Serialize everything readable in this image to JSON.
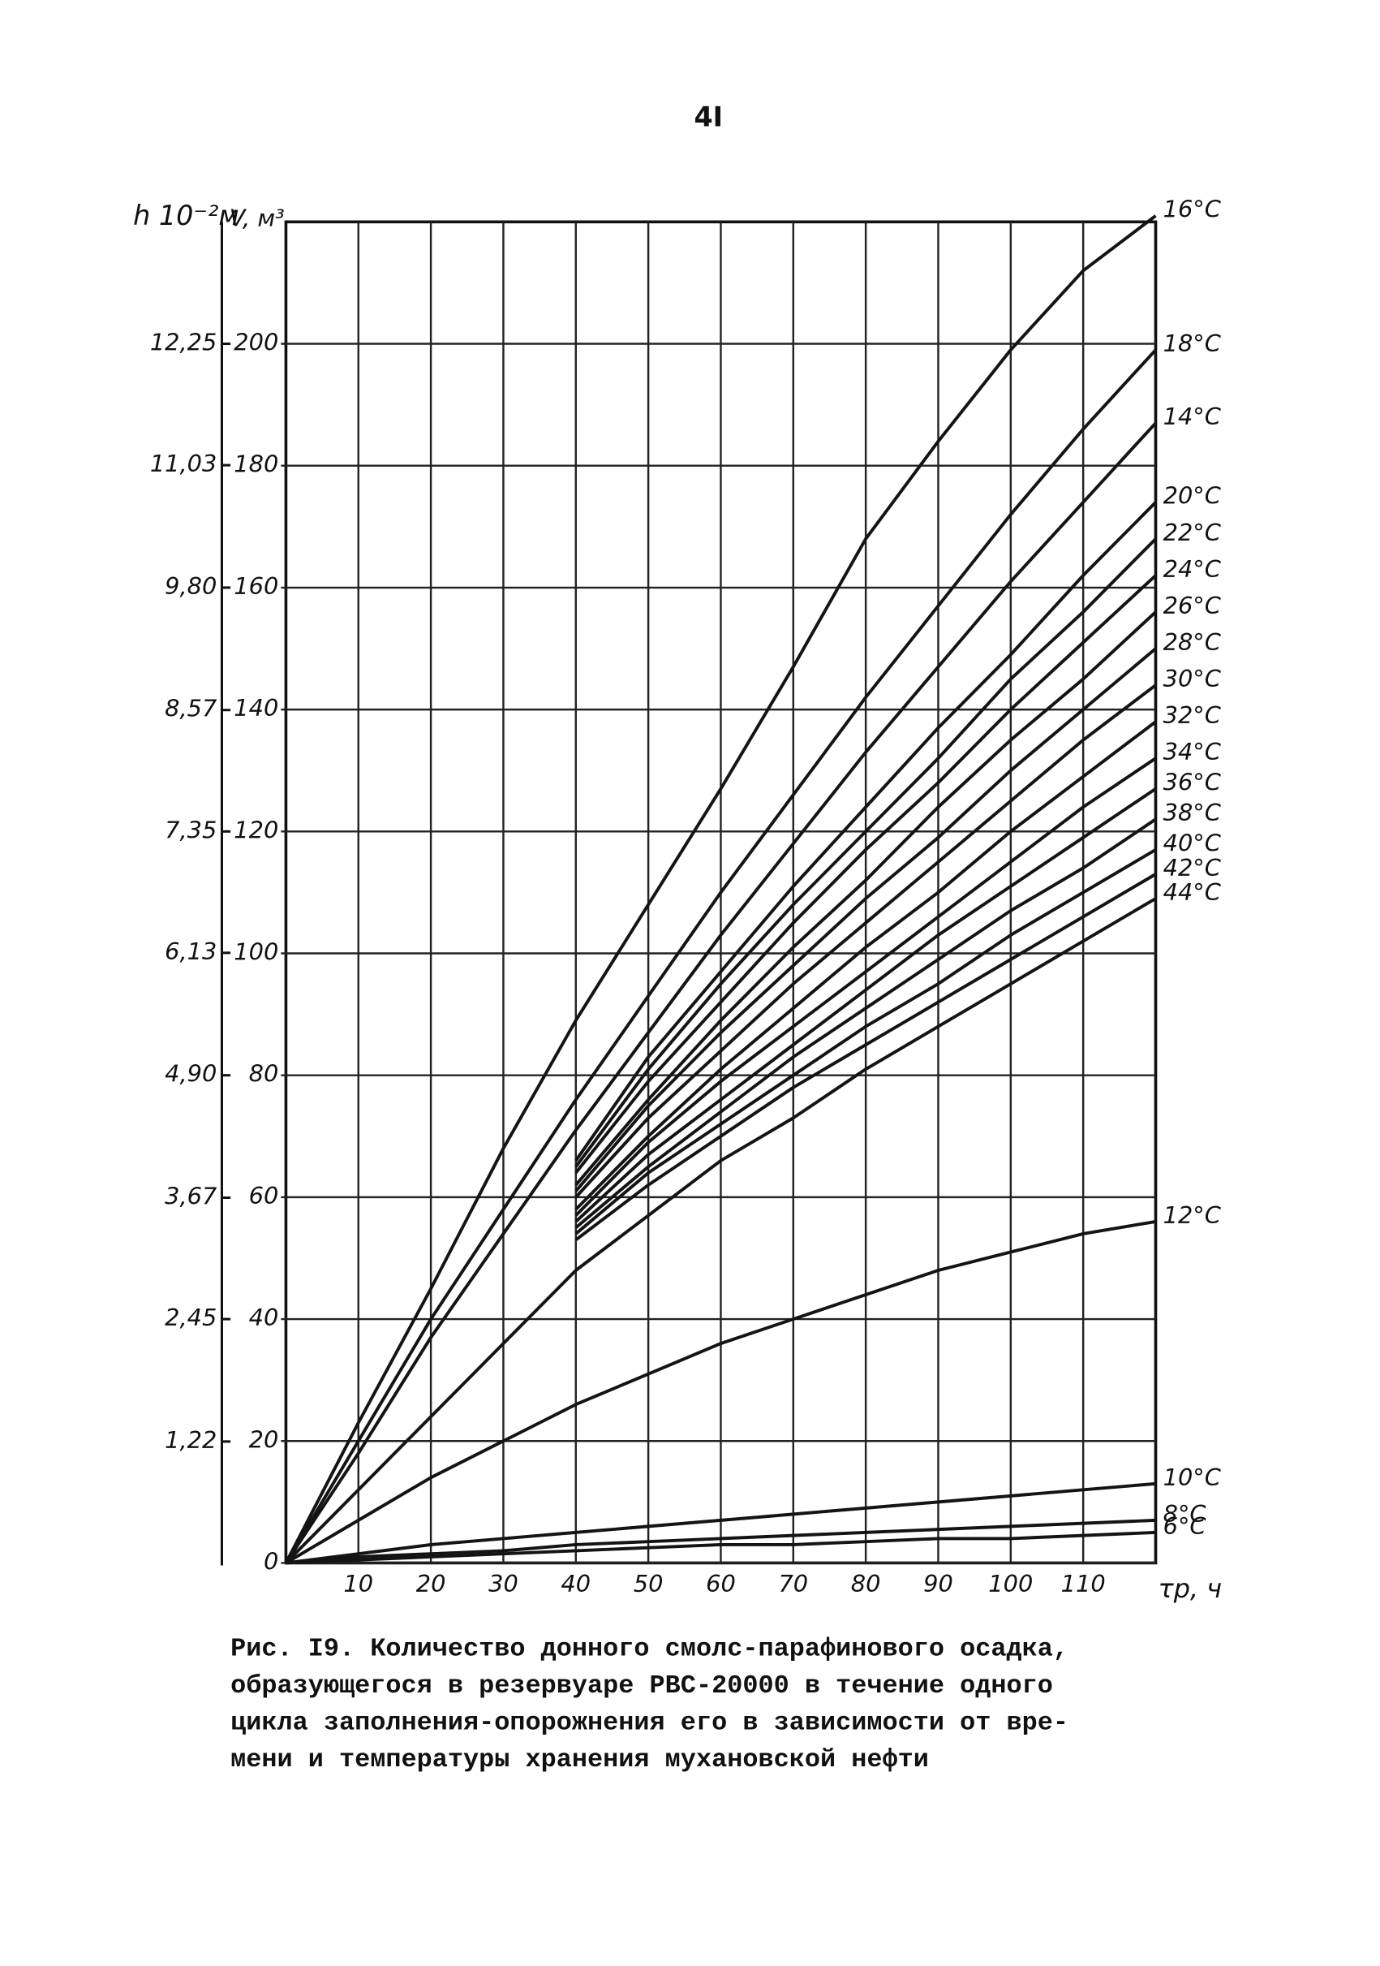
{
  "page_number": "4I",
  "chart_data": {
    "type": "line",
    "ylabel": "V, м³",
    "y2label": "h 10⁻²м",
    "xlabel": "τp, ч",
    "x": [
      0,
      10,
      20,
      30,
      40,
      50,
      60,
      70,
      80,
      90,
      100,
      110,
      120
    ],
    "xlim": [
      0,
      120
    ],
    "xticks": [
      10,
      20,
      30,
      40,
      50,
      60,
      70,
      80,
      90,
      100,
      110
    ],
    "ylim": [
      0,
      220
    ],
    "yticks": [
      0,
      20,
      40,
      60,
      80,
      100,
      120,
      140,
      160,
      180,
      200
    ],
    "y2lim": [
      0,
      13.475
    ],
    "y2ticks": [
      {
        "value": 1.22,
        "label": "1,22"
      },
      {
        "value": 2.45,
        "label": "2,45"
      },
      {
        "value": 3.67,
        "label": "3,67"
      },
      {
        "value": 4.9,
        "label": "4,90"
      },
      {
        "value": 6.13,
        "label": "6,13"
      },
      {
        "value": 7.35,
        "label": "7,35"
      },
      {
        "value": 8.57,
        "label": "8,57"
      },
      {
        "value": 9.8,
        "label": "9,80"
      },
      {
        "value": 11.03,
        "label": "11,03"
      },
      {
        "value": 12.25,
        "label": "12,25"
      }
    ],
    "grid": true,
    "series": [
      {
        "name": "16°C",
        "color": "#141414",
        "values": [
          0,
          23,
          45,
          68,
          89,
          108,
          127,
          147,
          168,
          184,
          199,
          212,
          221
        ]
      },
      {
        "name": "18°C",
        "color": "#141414",
        "values": [
          0,
          20,
          40,
          58,
          76,
          93,
          110,
          126,
          142,
          157,
          172,
          186,
          199
        ]
      },
      {
        "name": "14°C",
        "color": "#141414",
        "values": [
          0,
          18,
          37,
          54,
          71,
          87,
          103,
          118,
          133,
          147,
          161,
          174,
          187
        ]
      },
      {
        "name": "20°C",
        "color": "#141414",
        "values": [
          null,
          null,
          null,
          null,
          66,
          83,
          97,
          111,
          124,
          137,
          149,
          162,
          174
        ]
      },
      {
        "name": "22°C",
        "color": "#141414",
        "values": [
          null,
          null,
          null,
          null,
          65,
          81,
          95,
          108,
          120,
          132,
          145,
          156,
          168
        ]
      },
      {
        "name": "24°C",
        "color": "#141414",
        "values": [
          null,
          null,
          null,
          null,
          64,
          79,
          92,
          105,
          117,
          128,
          140,
          151,
          162
        ]
      },
      {
        "name": "26°C",
        "color": "#141414",
        "values": [
          null,
          null,
          null,
          null,
          62,
          76,
          89,
          101,
          112,
          124,
          135,
          145,
          156
        ]
      },
      {
        "name": "28°C",
        "color": "#141414",
        "values": [
          null,
          null,
          null,
          null,
          61,
          75,
          87,
          98,
          109,
          119,
          130,
          140,
          150
        ]
      },
      {
        "name": "30°C",
        "color": "#141414",
        "values": [
          null,
          null,
          null,
          null,
          60,
          73,
          84,
          95,
          105,
          115,
          125,
          135,
          144
        ]
      },
      {
        "name": "32°C",
        "color": "#141414",
        "values": [
          null,
          null,
          null,
          null,
          58,
          70,
          81,
          91,
          101,
          110,
          120,
          129,
          138
        ]
      },
      {
        "name": "34°C",
        "color": "#141414",
        "values": [
          null,
          null,
          null,
          null,
          57,
          69,
          79,
          88,
          97,
          106,
          115,
          124,
          132
        ]
      },
      {
        "name": "36°C",
        "color": "#141414",
        "values": [
          null,
          null,
          null,
          null,
          56,
          67,
          76,
          85,
          94,
          103,
          111,
          119,
          127
        ]
      },
      {
        "name": "38°C",
        "color": "#141414",
        "values": [
          null,
          null,
          null,
          null,
          55,
          65,
          74,
          83,
          91,
          99,
          107,
          114,
          122
        ]
      },
      {
        "name": "40°C",
        "color": "#141414",
        "values": [
          null,
          null,
          null,
          null,
          54,
          64,
          72,
          80,
          88,
          95,
          103,
          110,
          117
        ]
      },
      {
        "name": "42°C",
        "color": "#141414",
        "values": [
          null,
          null,
          null,
          null,
          53,
          62,
          70,
          78,
          85,
          92,
          99,
          106,
          113
        ]
      },
      {
        "name": "44°C",
        "color": "#141414",
        "values": [
          0,
          12,
          24,
          36,
          48,
          57,
          66,
          73,
          81,
          88,
          95,
          102,
          109
        ]
      },
      {
        "name": "12°C",
        "color": "#141414",
        "values": [
          0,
          7,
          14,
          20,
          26,
          31,
          36,
          40,
          44,
          48,
          51,
          54,
          56
        ]
      },
      {
        "name": "10°C",
        "color": "#141414",
        "values": [
          0,
          1.5,
          3,
          4,
          5,
          6,
          7,
          8,
          9,
          10,
          11,
          12,
          13
        ]
      },
      {
        "name": "8°C",
        "color": "#141414",
        "values": [
          0,
          1,
          1.5,
          2,
          3,
          3.5,
          4,
          4.5,
          5,
          5.5,
          6,
          6.5,
          7
        ]
      },
      {
        "name": "6°C",
        "color": "#141414",
        "values": [
          0,
          0.5,
          1,
          1.5,
          2,
          2.5,
          3,
          3,
          3.5,
          4,
          4,
          4.5,
          5
        ]
      }
    ]
  },
  "caption": [
    "Рис. I9. Количество донного смолс-парафинового осадка,",
    "образующегося в резервуаре РВС-20000 в течение одного",
    "цикла заполнения-опорожнения его в зависимости от вре-",
    "мени и температуры хранения мухановской нефти"
  ]
}
